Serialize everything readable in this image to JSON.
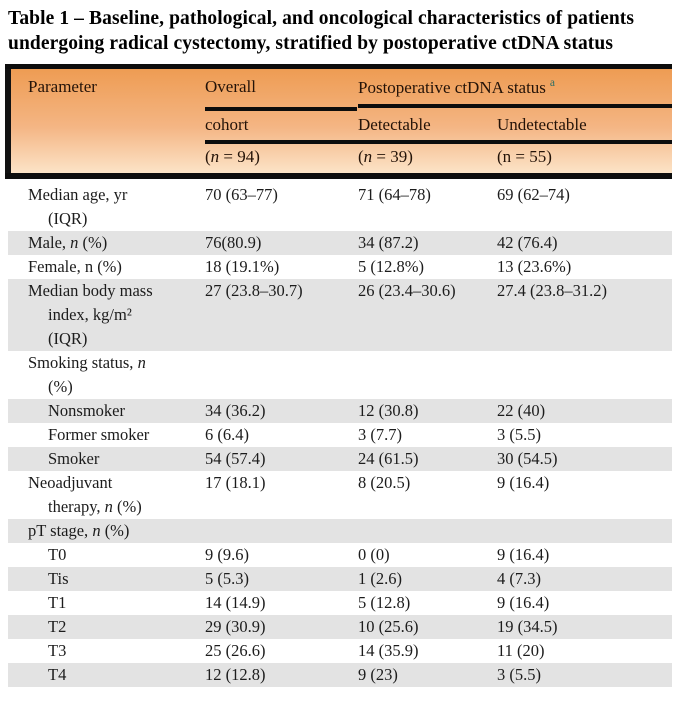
{
  "title": "Table 1 – Baseline, pathological, and oncological characteristics of patients undergoing radical cystectomy, stratified by postoperative ctDNA status",
  "colors": {
    "header_gradient_top": "#ee9c53",
    "header_gradient_bottom": "#fce3c7",
    "row_stripe": "#e3e3e3",
    "rule": "#0d0d0d",
    "footnote_accent": "#2d6f66"
  },
  "table": {
    "header": {
      "parameter": "Parameter",
      "overall": {
        "line1": "Overall",
        "line2": "cohort",
        "n": {
          "pre": "(",
          "it": "n",
          "post": " = 94)"
        }
      },
      "group": {
        "label": "Postoperative ctDNA status",
        "footnote": "a"
      },
      "detectable": {
        "label": "Detectable",
        "n": {
          "pre": "(",
          "it": "n",
          "post": " = 39)"
        }
      },
      "undetectable": {
        "label": "Undetectable",
        "n": {
          "pre": "(n = 55)",
          "it": "",
          "post": ""
        }
      }
    },
    "rows": [
      {
        "shaded": false,
        "label_lines": [
          {
            "pre": "Median age, yr",
            "it": "",
            "post": "",
            "indent": false
          },
          {
            "pre": "(IQR)",
            "it": "",
            "post": "",
            "indent": true
          }
        ],
        "values": [
          "70 (63–77)",
          "71 (64–78)",
          "69 (62–74)"
        ]
      },
      {
        "shaded": true,
        "label_lines": [
          {
            "pre": "Male, ",
            "it": "n",
            "post": " (%)",
            "indent": false
          }
        ],
        "values": [
          "76(80.9)",
          "34 (87.2)",
          "42 (76.4)"
        ]
      },
      {
        "shaded": false,
        "label_lines": [
          {
            "pre": "Female, n (%)",
            "it": "",
            "post": "",
            "indent": false
          }
        ],
        "values": [
          "18 (19.1%)",
          "5 (12.8%)",
          "13 (23.6%)"
        ]
      },
      {
        "shaded": true,
        "label_lines": [
          {
            "pre": "Median body mass",
            "it": "",
            "post": "",
            "indent": false
          },
          {
            "pre": "index, kg/m²",
            "it": "",
            "post": "",
            "indent": true
          },
          {
            "pre": "(IQR)",
            "it": "",
            "post": "",
            "indent": true
          }
        ],
        "values": [
          "27 (23.8–30.7)",
          "26 (23.4–30.6)",
          "27.4 (23.8–31.2)"
        ]
      },
      {
        "shaded": false,
        "label_lines": [
          {
            "pre": "Smoking status, ",
            "it": "n",
            "post": "",
            "indent": false
          },
          {
            "pre": "(%)",
            "it": "",
            "post": "",
            "indent": true
          }
        ],
        "values": [
          "",
          "",
          ""
        ]
      },
      {
        "shaded": true,
        "label_lines": [
          {
            "pre": "Nonsmoker",
            "it": "",
            "post": "",
            "indent": true
          }
        ],
        "values": [
          "34 (36.2)",
          "12 (30.8)",
          "22 (40)"
        ]
      },
      {
        "shaded": false,
        "label_lines": [
          {
            "pre": "Former smoker",
            "it": "",
            "post": "",
            "indent": true
          }
        ],
        "values": [
          "6 (6.4)",
          "3 (7.7)",
          "3 (5.5)"
        ]
      },
      {
        "shaded": true,
        "label_lines": [
          {
            "pre": "Smoker",
            "it": "",
            "post": "",
            "indent": true
          }
        ],
        "values": [
          "54 (57.4)",
          "24 (61.5)",
          "30 (54.5)"
        ]
      },
      {
        "shaded": false,
        "label_lines": [
          {
            "pre": "Neoadjuvant",
            "it": "",
            "post": "",
            "indent": false
          },
          {
            "pre": "therapy, ",
            "it": "n",
            "post": " (%)",
            "indent": true
          }
        ],
        "values": [
          "17 (18.1)",
          "8 (20.5)",
          "9 (16.4)"
        ]
      },
      {
        "shaded": true,
        "label_lines": [
          {
            "pre": "pT stage, ",
            "it": "n",
            "post": " (%)",
            "indent": false
          }
        ],
        "values": [
          "",
          "",
          ""
        ]
      },
      {
        "shaded": false,
        "label_lines": [
          {
            "pre": "T0",
            "it": "",
            "post": "",
            "indent": true
          }
        ],
        "values": [
          "9 (9.6)",
          "0 (0)",
          "9 (16.4)"
        ]
      },
      {
        "shaded": true,
        "label_lines": [
          {
            "pre": "Tis",
            "it": "",
            "post": "",
            "indent": true
          }
        ],
        "values": [
          "5 (5.3)",
          "1 (2.6)",
          "4 (7.3)"
        ]
      },
      {
        "shaded": false,
        "label_lines": [
          {
            "pre": "T1",
            "it": "",
            "post": "",
            "indent": true
          }
        ],
        "values": [
          "14 (14.9)",
          "5 (12.8)",
          "9 (16.4)"
        ]
      },
      {
        "shaded": true,
        "label_lines": [
          {
            "pre": "T2",
            "it": "",
            "post": "",
            "indent": true
          }
        ],
        "values": [
          "29 (30.9)",
          "10 (25.6)",
          "19 (34.5)"
        ]
      },
      {
        "shaded": false,
        "label_lines": [
          {
            "pre": "T3",
            "it": "",
            "post": "",
            "indent": true
          }
        ],
        "values": [
          "25 (26.6)",
          "14 (35.9)",
          "11 (20)"
        ]
      },
      {
        "shaded": true,
        "label_lines": [
          {
            "pre": "T4",
            "it": "",
            "post": "",
            "indent": true
          }
        ],
        "values": [
          "12 (12.8)",
          "9 (23)",
          "3 (5.5)"
        ]
      }
    ]
  }
}
